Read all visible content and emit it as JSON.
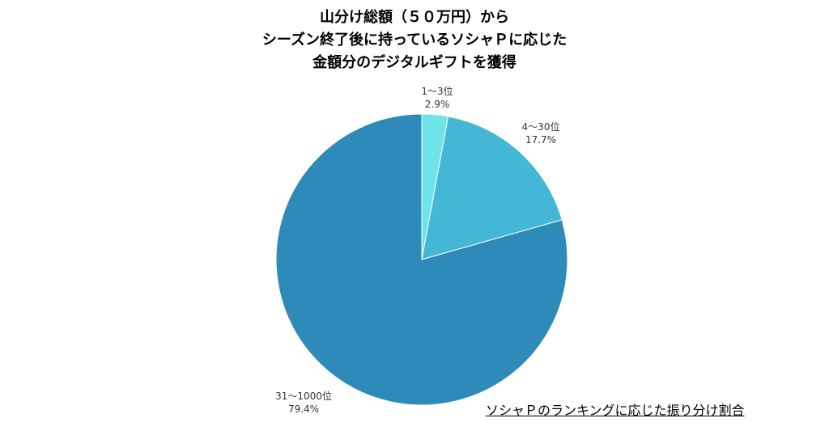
{
  "title_lines": [
    "山分け総額（５０万円）から",
    "シーズン終了後に持っているソシャＰに応じた",
    "金額分のデジタルギフトを獲得"
  ],
  "footnote": "ソシャＰのランキングに応じた振り分け割合",
  "chart_data": {
    "type": "pie",
    "title": "山分け総額（５０万円）から シーズン終了後に持っているソシャＰに応じた 金額分のデジタルギフトを獲得",
    "slices": [
      {
        "label": "1〜3位",
        "value": 2.9,
        "value_label": "2.9%",
        "color": "#6ee3e8"
      },
      {
        "label": "4〜30位",
        "value": 17.7,
        "value_label": "17.7%",
        "color": "#44b6d6"
      },
      {
        "label": "31〜1000位",
        "value": 79.4,
        "value_label": "79.4%",
        "color": "#2e8ab8"
      }
    ],
    "start_angle": "top (12 o'clock)",
    "direction": "clockwise",
    "legend": "none",
    "labels": "outside slices"
  }
}
